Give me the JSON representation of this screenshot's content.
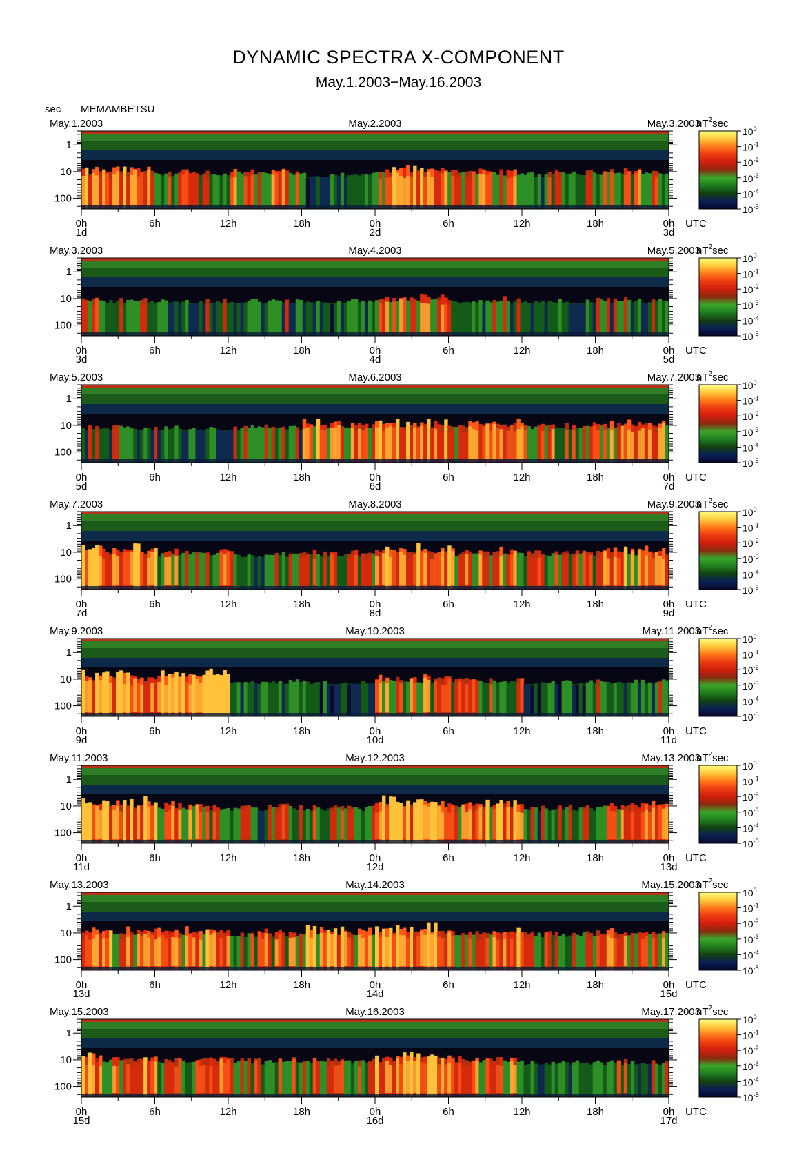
{
  "header": {
    "title": "DYNAMIC SPECTRA X-COMPONENT",
    "subtitle": "May.1.2003−May.16.2003",
    "yunit": "sec",
    "station": "MEMAMBETSU",
    "cbar_unit": "nT",
    "cbar_unit_exp": "2",
    "cbar_unit_suffix": "sec",
    "utc_label": "UTC"
  },
  "chart_data": {
    "type": "heatmap",
    "yaxis": {
      "label": "sec",
      "scale": "log",
      "range": [
        0.3,
        250
      ],
      "ticks": [
        "1",
        "10",
        "100"
      ]
    },
    "xaxis": {
      "ticks": [
        "0h",
        "6h",
        "12h",
        "18h",
        "0h",
        "6h",
        "12h",
        "18h",
        "0h"
      ]
    },
    "colorbar": {
      "unit": "nT²sec",
      "scale": "log",
      "range": [
        1e-05,
        1
      ],
      "tick_exponents": [
        "0",
        "-1",
        "-2",
        "-3",
        "-4",
        "-5"
      ],
      "colors": [
        "#07072a",
        "#0a1f55",
        "#124010",
        "#1f7d1f",
        "#3aa62a",
        "#8a2a10",
        "#d21e0c",
        "#ee3a10",
        "#ff7a1a",
        "#ffc93a",
        "#ffff82"
      ]
    },
    "panels": [
      {
        "left_date": "May.1.2003",
        "mid_date": "May.2.2003",
        "right_date": "May.3.2003",
        "day_labels": [
          "1d",
          "2d",
          "3d"
        ],
        "activity": [
          0.7,
          0.5,
          0.6,
          0.3,
          0.75,
          0.6,
          0.45,
          0.55
        ]
      },
      {
        "left_date": "May.3.2003",
        "mid_date": "May.4.2003",
        "right_date": "May.5.2003",
        "day_labels": [
          "3d",
          "4d",
          "5d"
        ],
        "activity": [
          0.5,
          0.4,
          0.35,
          0.3,
          0.6,
          0.45,
          0.35,
          0.4
        ]
      },
      {
        "left_date": "May.5.2003",
        "mid_date": "May.6.2003",
        "right_date": "May.7.2003",
        "day_labels": [
          "5d",
          "6d",
          "7d"
        ],
        "activity": [
          0.4,
          0.35,
          0.4,
          0.7,
          0.8,
          0.7,
          0.55,
          0.7
        ]
      },
      {
        "left_date": "May.7.2003",
        "mid_date": "May.8.2003",
        "right_date": "May.9.2003",
        "day_labels": [
          "7d",
          "8d",
          "9d"
        ],
        "activity": [
          0.8,
          0.55,
          0.45,
          0.5,
          0.75,
          0.65,
          0.5,
          0.7
        ]
      },
      {
        "left_date": "May.9.2003",
        "mid_date": "May.10.2003",
        "right_date": "May.11.2003",
        "day_labels": [
          "9d",
          "10d",
          "11d"
        ],
        "activity": [
          0.8,
          0.95,
          0.35,
          0.25,
          0.6,
          0.55,
          0.3,
          0.45
        ]
      },
      {
        "left_date": "May.11.2003",
        "mid_date": "May.12.2003",
        "right_date": "May.13.2003",
        "day_labels": [
          "11d",
          "12d",
          "13d"
        ],
        "activity": [
          0.8,
          0.6,
          0.45,
          0.5,
          0.8,
          0.7,
          0.45,
          0.65
        ]
      },
      {
        "left_date": "May.13.2003",
        "mid_date": "May.14.2003",
        "right_date": "May.15.2003",
        "day_labels": [
          "13d",
          "14d",
          "15d"
        ],
        "activity": [
          0.7,
          0.7,
          0.55,
          0.7,
          0.85,
          0.7,
          0.5,
          0.65
        ]
      },
      {
        "left_date": "May.15.2003",
        "mid_date": "May.16.2003",
        "right_date": "May.17.2003",
        "day_labels": [
          "15d",
          "16d",
          "17d"
        ],
        "activity": [
          0.75,
          0.55,
          0.5,
          0.55,
          0.75,
          0.65,
          0.3,
          0.45
        ]
      }
    ]
  }
}
